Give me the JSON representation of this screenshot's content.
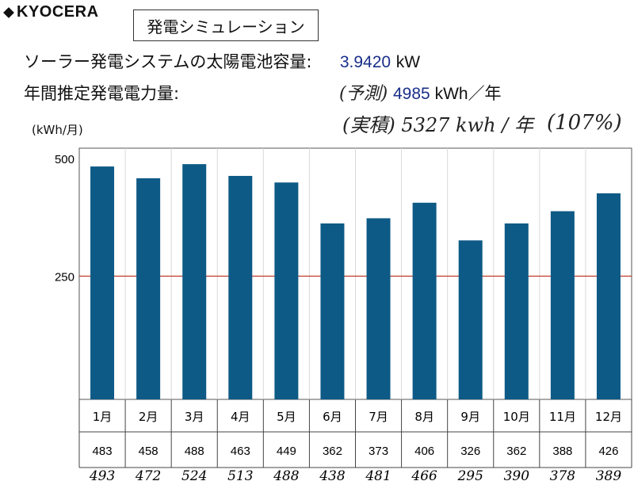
{
  "header": {
    "brand": "KYOCERA",
    "sim_title": "発電シミュレーション",
    "capacity_label": "ソーラー発電システムの太陽電池容量:",
    "capacity_value": "3.9420",
    "capacity_unit": "kW",
    "annual_label": "年間推定発電電力量:",
    "annual_value": "4985",
    "annual_unit": "kWh／年",
    "handwritten_predicted": "(予測)",
    "handwritten_actual": "(実積) 5327 kwh / 年",
    "handwritten_percent": "(107%)"
  },
  "chart_data": {
    "type": "bar",
    "y_unit_label": "(kWh/月)",
    "categories": [
      "1月",
      "2月",
      "3月",
      "4月",
      "5月",
      "6月",
      "7月",
      "8月",
      "9月",
      "10月",
      "11月",
      "12月"
    ],
    "series": [
      {
        "values": [
          483,
          458,
          488,
          463,
          449,
          362,
          373,
          406,
          326,
          362,
          388,
          426
        ]
      }
    ],
    "actual_handwritten": [
      "493",
      "472",
      "524",
      "513",
      "488",
      "438",
      "481",
      "466",
      "295",
      "390",
      "378",
      "389"
    ],
    "yticks": [
      250,
      500
    ],
    "ylim": [
      0,
      500
    ],
    "reference_line": 250,
    "colors": {
      "bar": "#0e5a86",
      "reference": "#c0392b",
      "grid": "#d9d9d9"
    }
  }
}
